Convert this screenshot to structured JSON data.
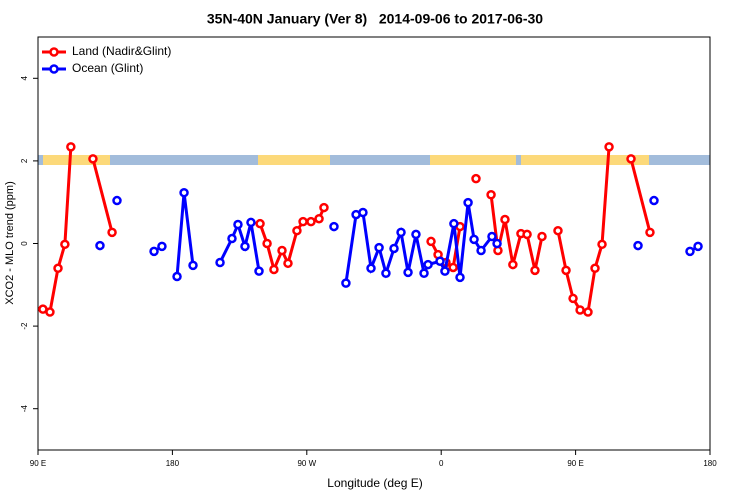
{
  "chart_data": {
    "type": "line",
    "title": "35N-40N January (Ver 8)   2014-09-06 to 2017-06-30",
    "xlabel": "Longitude (deg E)",
    "ylabel": "XCO2 - MLO trend (ppm)",
    "xlim": [
      90,
      540
    ],
    "xticks": [
      {
        "value": 90,
        "label": "90 E"
      },
      {
        "value": 180,
        "label": "180"
      },
      {
        "value": 270,
        "label": "90 W"
      },
      {
        "value": 360,
        "label": "0"
      },
      {
        "value": 450,
        "label": "90 E"
      },
      {
        "value": 540,
        "label": "180"
      }
    ],
    "ylim": [
      -5,
      5
    ],
    "yticks": [
      -4,
      -2,
      0,
      2,
      4
    ],
    "legend": "top-left",
    "series": [
      {
        "name": "Land (Nadir&Glint)",
        "color": "#ff0000",
        "x": [
          93.3,
          98,
          103.4,
          108,
          112,
          null,
          126.8,
          139.6,
          null,
          238.7,
          243.4,
          248,
          253.4,
          257.4,
          263.4,
          267.5,
          272.8,
          278.2,
          281.5,
          null,
          353.2,
          357.9,
          363.2,
          368,
          372.6,
          null,
          383.3,
          null,
          393.4,
          398,
          402.7,
          408,
          413.4,
          417.5,
          422.8,
          427.5,
          null,
          438.2,
          443.6,
          448.3,
          453,
          458.3,
          463,
          467.7,
          472.4,
          null,
          487.1,
          499.8
        ],
        "values": [
          -1.59,
          -1.66,
          -0.6,
          -0.02,
          2.34,
          null,
          2.05,
          0.27,
          null,
          0.48,
          0.0,
          -0.63,
          -0.17,
          -0.48,
          0.31,
          0.53,
          0.53,
          0.6,
          0.87,
          null,
          0.05,
          -0.27,
          -0.46,
          -0.58,
          0.41,
          null,
          1.57,
          null,
          1.18,
          -0.17,
          0.58,
          -0.51,
          0.24,
          0.22,
          -0.65,
          0.17,
          null,
          0.31,
          -0.65,
          -1.33,
          -1.61,
          -1.66,
          -0.6,
          -0.02,
          2.34,
          null,
          2.05,
          0.27
        ]
      },
      {
        "name": "Ocean (Glint)",
        "color": "#0000ff",
        "x": [
          131.5,
          null,
          142.9,
          null,
          167.7,
          173,
          null,
          183.1,
          187.8,
          193.8,
          null,
          211.9,
          219.9,
          223.9,
          228.6,
          232.6,
          238,
          null,
          288.2,
          null,
          296.2,
          303,
          307.6,
          313,
          318.4,
          323,
          328.4,
          333.1,
          337.8,
          343.1,
          348.5,
          351.2,
          359.2,
          362.5,
          368.5,
          372.6,
          378,
          382,
          386.7,
          394,
          397.4,
          null,
          491.8,
          null,
          502.5,
          null,
          526.6,
          532
        ],
        "values": [
          -0.05,
          null,
          1.04,
          null,
          -0.19,
          -0.07,
          null,
          -0.8,
          1.23,
          -0.53,
          null,
          -0.46,
          0.12,
          0.46,
          -0.07,
          0.51,
          -0.67,
          null,
          0.41,
          null,
          -0.96,
          0.7,
          0.75,
          -0.6,
          -0.1,
          -0.72,
          -0.12,
          0.27,
          -0.7,
          0.22,
          -0.72,
          -0.51,
          -0.43,
          -0.67,
          0.48,
          -0.82,
          0.99,
          0.1,
          -0.17,
          0.17,
          0.0,
          null,
          -0.05,
          null,
          1.04,
          null,
          -0.19,
          -0.07
        ]
      }
    ]
  }
}
